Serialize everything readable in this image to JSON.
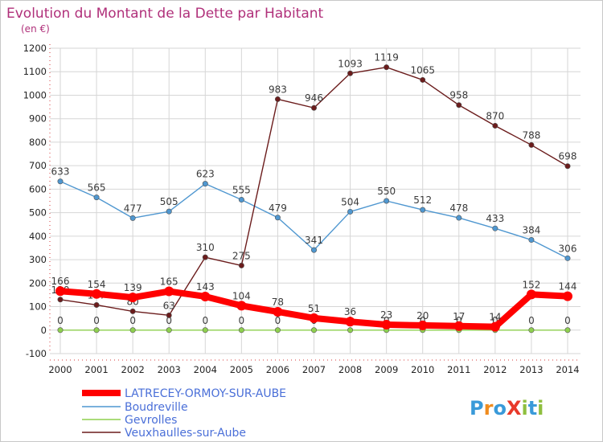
{
  "chart_data": {
    "type": "line",
    "title": "Evolution du Montant de la Dette par Habitant",
    "subtitle": "(en €)",
    "xlabel": "",
    "ylabel": "",
    "categories": [
      "2000",
      "2001",
      "2002",
      "2003",
      "2004",
      "2005",
      "2006",
      "2007",
      "2008",
      "2009",
      "2010",
      "2011",
      "2012",
      "2013",
      "2014"
    ],
    "ylim": [
      -100,
      1200
    ],
    "yticks": [
      -100,
      0,
      100,
      200,
      300,
      400,
      500,
      600,
      700,
      800,
      900,
      1000,
      1100,
      1200
    ],
    "grid": true,
    "legend_placement": "bottom-left",
    "series": [
      {
        "name": "LATRECEY-ORMOY-SUR-AUBE",
        "color": "#ff0000",
        "emphasis": true,
        "values": [
          166,
          154,
          139,
          165,
          143,
          104,
          78,
          51,
          36,
          23,
          20,
          17,
          14,
          152,
          144
        ],
        "labels": [
          "166",
          "154",
          "139",
          "165",
          "143",
          "104",
          "78",
          "51",
          "36",
          "23",
          "20",
          "17",
          "14",
          "152",
          "144"
        ]
      },
      {
        "name": "Boudreville",
        "color": "#4f97d0",
        "emphasis": false,
        "values": [
          633,
          565,
          477,
          505,
          623,
          555,
          479,
          341,
          504,
          550,
          512,
          478,
          433,
          384,
          306
        ],
        "labels": [
          "633",
          "565",
          "477",
          "505",
          "623",
          "555",
          "479",
          "341",
          "504",
          "550",
          "512",
          "478",
          "433",
          "384",
          "306"
        ]
      },
      {
        "name": "Gevrolles",
        "color": "#8fd04f",
        "emphasis": false,
        "values": [
          0,
          0,
          0,
          0,
          0,
          0,
          0,
          0,
          0,
          0,
          0,
          0,
          0,
          0,
          0
        ],
        "labels": [
          "0",
          "0",
          "0",
          "0",
          "0",
          "0",
          "0",
          "0",
          "0",
          "0",
          "0",
          "0",
          "0",
          "0",
          "0"
        ]
      },
      {
        "name": "Veuxhaulles-sur-Aube",
        "color": "#6b1c1c",
        "emphasis": false,
        "values": [
          130,
          107,
          80,
          63,
          310,
          275,
          983,
          946,
          1093,
          1119,
          1065,
          958,
          870,
          788,
          698
        ],
        "labels": [
          "130",
          "107",
          "80",
          "63",
          "310",
          "275",
          "983",
          "946",
          "1093",
          "1119",
          "1065",
          "958",
          "870",
          "788",
          "698"
        ]
      }
    ]
  },
  "logo": {
    "text": "ProXiti",
    "colors": [
      "#3a9ad9",
      "#f08c1e",
      "#3a9ad9",
      "#e8392a",
      "#8fbf3f",
      "#3a9ad9",
      "#8fbf3f"
    ]
  }
}
